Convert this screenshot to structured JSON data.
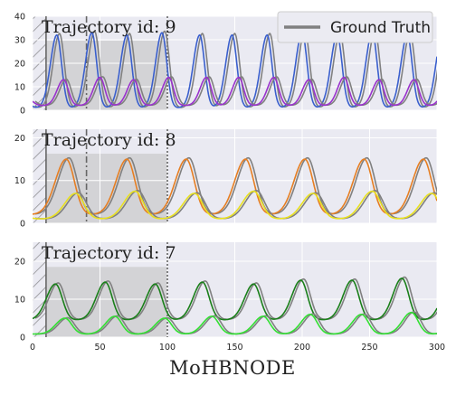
{
  "figure": {
    "xlabel": "MoHBNODE",
    "legend": {
      "label": "Ground Truth",
      "color": "#808080",
      "placement": "top-right"
    }
  },
  "colors": {
    "panel_bg": "#eaeaf2",
    "grid": "#ffffff",
    "shade": "#d3d3d6",
    "ground_truth": "#808080"
  },
  "chart_data": [
    {
      "type": "line",
      "title": "Trajectory id: 9",
      "xlim": [
        0,
        300
      ],
      "ylim": [
        0,
        40
      ],
      "yticks": [
        0,
        10,
        20,
        30,
        40
      ],
      "xticks": [],
      "grid": true,
      "vlines": [
        {
          "x": 10,
          "style": "solid"
        },
        {
          "x": 40,
          "style": "dashdot"
        },
        {
          "x": 100,
          "style": "dotted"
        }
      ],
      "shaded_x": [
        10,
        100
      ],
      "hatched_x": [
        0,
        10
      ],
      "series": [
        {
          "role": "prey",
          "color": "#3a5fcd",
          "peak_x": [
            18,
            44,
            70,
            96,
            124,
            148,
            174,
            200,
            226,
            252,
            278
          ],
          "peak_y": [
            32,
            33,
            32,
            33,
            32,
            32,
            32,
            33,
            32,
            33,
            32
          ],
          "trough_y": 1
        },
        {
          "role": "predator",
          "color": "#9932cc",
          "peak_x": [
            23,
            50,
            75,
            101,
            129,
            153,
            179,
            205,
            231,
            257,
            283
          ],
          "peak_y": [
            13,
            14,
            13,
            14,
            14,
            14,
            14,
            13,
            14,
            13,
            13
          ],
          "trough_y": 2
        }
      ]
    },
    {
      "type": "line",
      "title": "Trajectory id: 8",
      "xlim": [
        0,
        300
      ],
      "ylim": [
        0,
        22
      ],
      "yticks": [
        0,
        10,
        20
      ],
      "xticks": [],
      "grid": true,
      "vlines": [
        {
          "x": 10,
          "style": "solid"
        },
        {
          "x": 40,
          "style": "dashdot"
        },
        {
          "x": 100,
          "style": "dotted"
        }
      ],
      "shaded_x": [
        10,
        100
      ],
      "hatched_x": [
        0,
        10
      ],
      "series": [
        {
          "role": "prey",
          "color": "#e67e22",
          "peak_x": [
            25,
            70,
            114,
            158,
            202,
            246,
            290
          ],
          "peak_y": [
            15,
            15,
            15,
            15,
            15,
            15,
            15
          ],
          "trough_y": 2
        },
        {
          "role": "predator",
          "color": "#e8e020",
          "peak_x": [
            32,
            76,
            120,
            164,
            208,
            252,
            296
          ],
          "peak_y": [
            7,
            7.5,
            7,
            7.5,
            7,
            7.5,
            7
          ],
          "trough_y": 1
        }
      ]
    },
    {
      "type": "line",
      "title": "Trajectory id: 7",
      "xlim": [
        0,
        300
      ],
      "ylim": [
        0,
        25
      ],
      "yticks": [
        0,
        10,
        20
      ],
      "xticks": [
        0,
        50,
        100,
        150,
        200,
        250,
        300
      ],
      "grid": true,
      "vlines": [
        {
          "x": 10,
          "style": "solid"
        },
        {
          "x": 100,
          "style": "dotted"
        }
      ],
      "shaded_x": [
        10,
        100
      ],
      "hatched_x": [
        0,
        10
      ],
      "series": [
        {
          "role": "prey",
          "color": "#1a7f1a",
          "peak_x": [
            17,
            54,
            91,
            126,
            164,
            199,
            237,
            274
          ],
          "peak_y": [
            14,
            14.5,
            14,
            14.5,
            14,
            15,
            15,
            15.5
          ],
          "trough_y": 4.5
        },
        {
          "role": "predator",
          "color": "#33e033",
          "peak_x": [
            24,
            61,
            98,
            133,
            171,
            206,
            244,
            281
          ],
          "peak_y": [
            5,
            5.5,
            5,
            5.5,
            5.5,
            6,
            6,
            6.5
          ],
          "trough_y": 0.8
        }
      ]
    }
  ]
}
